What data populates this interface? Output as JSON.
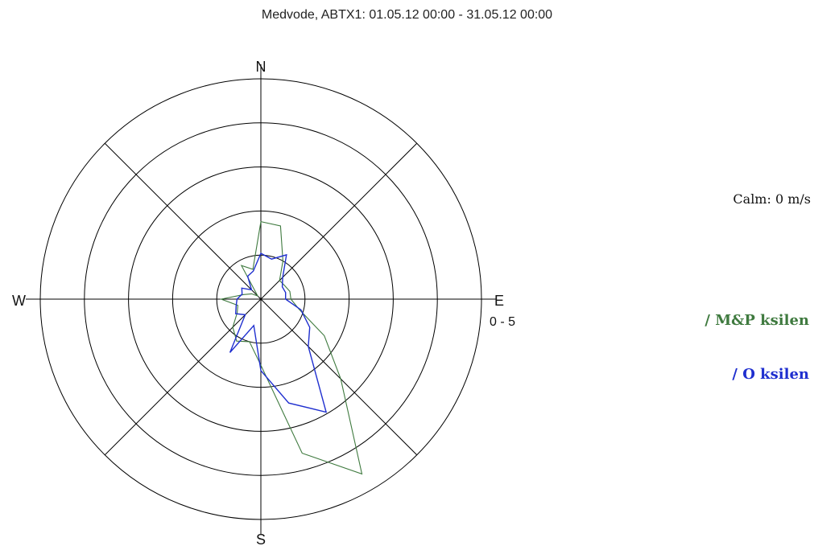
{
  "chart_data": {
    "type": "polar",
    "title": "Medvode, ABTX1: 01.05.12 00:00 - 31.05.12 00:00",
    "directions": [
      "N",
      "E",
      "S",
      "W"
    ],
    "range_label": "0 - 5",
    "calm_label": "Calm: 0 m/s",
    "rmax": 5,
    "rings": [
      1,
      2,
      3,
      4,
      5
    ],
    "grid": true,
    "legend_position": "right",
    "angles_deg": [
      0,
      15,
      30,
      45,
      60,
      75,
      90,
      105,
      120,
      135,
      150,
      165,
      180,
      195,
      210,
      225,
      240,
      255,
      270,
      285,
      300,
      315,
      330,
      345
    ],
    "series": [
      {
        "name": "/ M&P ksilen",
        "color": "#3f7a3f",
        "values": [
          1.76,
          1.72,
          1.0,
          0.6,
          0.62,
          0.68,
          0.68,
          0.9,
          1.66,
          2.56,
          4.58,
          3.62,
          1.5,
          1.0,
          1.1,
          0.9,
          0.62,
          0.54,
          0.9,
          0.4,
          0.24,
          0.1,
          0.88,
          0.7
        ]
      },
      {
        "name": "/ O ksilen",
        "color": "#1f2fcf",
        "values": [
          1.04,
          0.94,
          1.16,
          0.7,
          0.56,
          0.58,
          0.56,
          0.94,
          1.28,
          1.52,
          2.96,
          2.44,
          1.62,
          0.62,
          1.4,
          0.5,
          0.66,
          0.58,
          0.54,
          0.44,
          0.5,
          0.3,
          0.6,
          0.66
        ]
      }
    ]
  }
}
